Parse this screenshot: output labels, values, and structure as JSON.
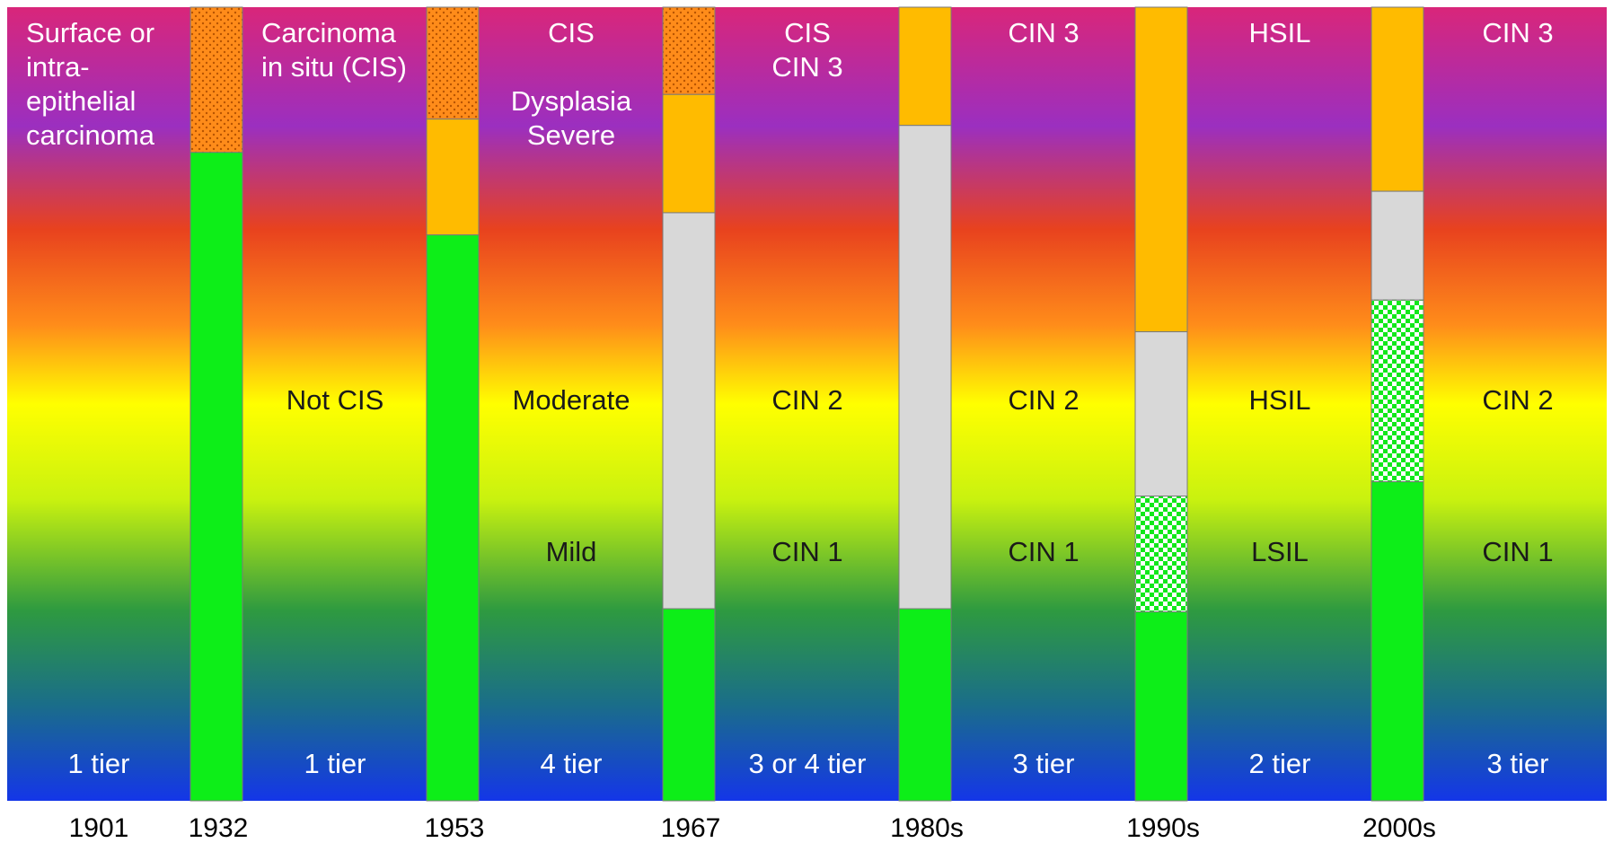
{
  "columns": [
    {
      "top": [
        "Surface or",
        "intra-",
        "epithelial",
        "carcinoma"
      ],
      "top_align": "left",
      "tiers": "1 tier"
    },
    {
      "top": [
        "Carcinoma",
        "in situ (CIS)"
      ],
      "top_align": "left",
      "middle": "Not CIS",
      "tiers": "1 tier"
    },
    {
      "top": [
        "CIS",
        "",
        "Dysplasia",
        "Severe"
      ],
      "top_align": "center",
      "middle": "Moderate",
      "lower": "Mild",
      "tiers": "4 tier"
    },
    {
      "top": [
        "CIS",
        "CIN 3"
      ],
      "top_align": "center",
      "middle": "CIN 2",
      "lower": "CIN 1",
      "tiers": "3 or 4 tier"
    },
    {
      "top": [
        "CIN 3"
      ],
      "top_align": "center",
      "middle": "CIN 2",
      "lower": "CIN 1",
      "tiers": "3 tier"
    },
    {
      "top": [
        "HSIL"
      ],
      "top_align": "center",
      "middle": "HSIL",
      "lower": "LSIL",
      "tiers": "2 tier"
    },
    {
      "top": [
        "CIN 3"
      ],
      "top_align": "center",
      "middle": "CIN 2",
      "lower": "CIN 1",
      "tiers": "3 tier"
    }
  ],
  "bars": [
    {
      "year": "1932",
      "segments": [
        {
          "kind": "dotted",
          "to": 0.183
        },
        {
          "kind": "green",
          "to": 1.0
        }
      ]
    },
    {
      "year": "1953",
      "segments": [
        {
          "kind": "dotted",
          "to": 0.141
        },
        {
          "kind": "orange",
          "to": 0.287
        },
        {
          "kind": "green",
          "to": 1.0
        }
      ]
    },
    {
      "year": "1967",
      "segments": [
        {
          "kind": "dotted",
          "to": 0.11
        },
        {
          "kind": "orange",
          "to": 0.259
        },
        {
          "kind": "gray",
          "to": 0.758
        },
        {
          "kind": "green",
          "to": 1.0
        }
      ]
    },
    {
      "year": "1980s",
      "segments": [
        {
          "kind": "orange",
          "to": 0.149
        },
        {
          "kind": "gray",
          "to": 0.758
        },
        {
          "kind": "green",
          "to": 1.0
        }
      ]
    },
    {
      "year": "1990s",
      "segments": [
        {
          "kind": "orange",
          "to": 0.409
        },
        {
          "kind": "gray",
          "to": 0.616
        },
        {
          "kind": "checker",
          "to": 0.762
        },
        {
          "kind": "green",
          "to": 1.0
        }
      ]
    },
    {
      "year": "2000s",
      "segments": [
        {
          "kind": "orange",
          "to": 0.232
        },
        {
          "kind": "gray",
          "to": 0.369
        },
        {
          "kind": "checker",
          "to": 0.598
        },
        {
          "kind": "green",
          "to": 1.0
        }
      ]
    }
  ],
  "first_year": "1901",
  "colors": {
    "gradient": [
      "#d9267a",
      "#9b2fc0",
      "#e8421e",
      "#ff8c1a",
      "#ffff00",
      "#c9f20f",
      "#2e9a40",
      "#1a6d8a",
      "#1436e8"
    ],
    "bar_green": "#0dee18",
    "bar_orange": "#ffbb00",
    "bar_gray": "#d8d8d8",
    "dotted_base": "#ff8c1a",
    "dotted_dot": "#b85400",
    "checker_a": "#11e81a",
    "checker_b": "#ffffff"
  }
}
